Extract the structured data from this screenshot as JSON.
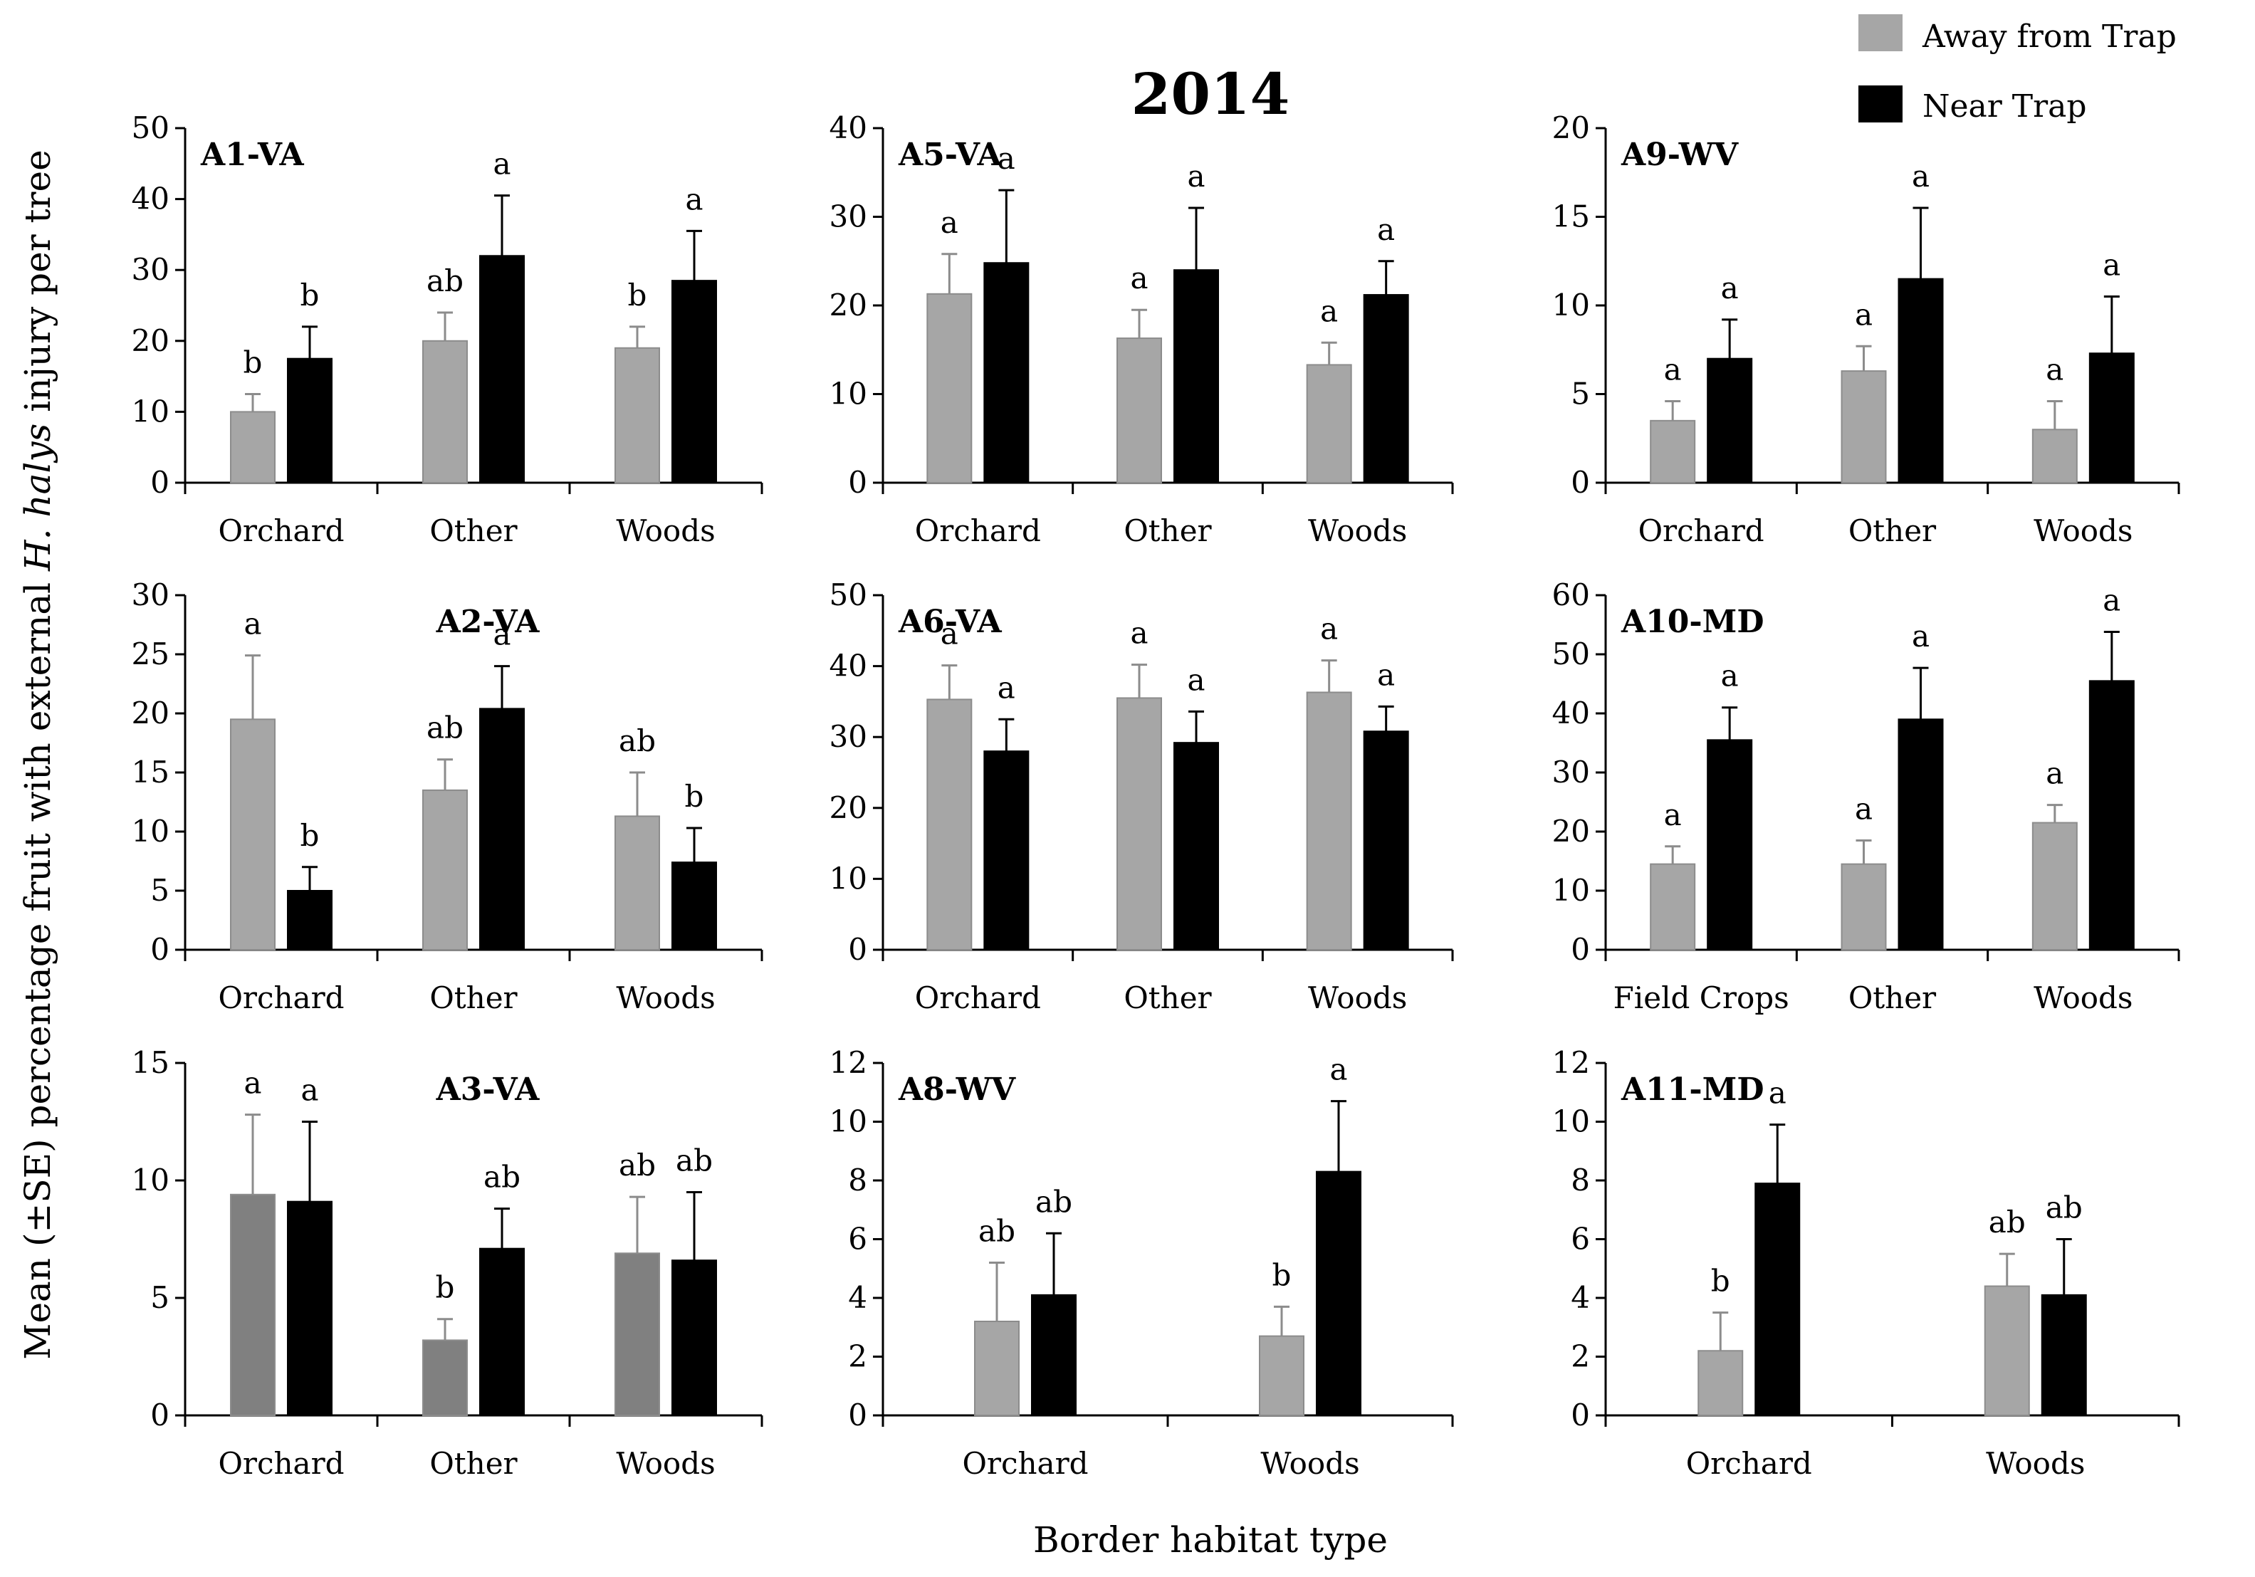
{
  "title": "2014",
  "ylabel_prefix": "Mean (±SE) percentage fruit with external ",
  "ylabel_italic": "H. halys",
  "ylabel_suffix": " injury per tree",
  "xlabel": "Border habitat type",
  "legend": [
    {
      "label": "Away from Trap",
      "color": "#a6a6a6"
    },
    {
      "label": "Near Trap",
      "color": "#000000"
    }
  ],
  "colors": {
    "away": "#a6a6a6",
    "away_dark": "#808080",
    "near": "#000000"
  },
  "chart_data": [
    {
      "type": "bar",
      "title": "A1-VA",
      "ylim": [
        0,
        50
      ],
      "yticks": [
        0,
        10,
        20,
        30,
        40,
        50
      ],
      "title_align": "left",
      "categories": [
        "Orchard",
        "Other",
        "Woods"
      ],
      "series": [
        {
          "name": "Away from Trap",
          "values": [
            10,
            20,
            19
          ],
          "errors": [
            2.5,
            4,
            3
          ],
          "letters": [
            "b",
            "ab",
            "b"
          ]
        },
        {
          "name": "Near Trap",
          "values": [
            17.5,
            32,
            28.5
          ],
          "errors": [
            4.5,
            8.5,
            7
          ],
          "letters": [
            "b",
            "a",
            "a"
          ]
        }
      ]
    },
    {
      "type": "bar",
      "title": "A5-VA",
      "ylim": [
        0,
        40
      ],
      "yticks": [
        0,
        10,
        20,
        30,
        40
      ],
      "title_align": "left",
      "categories": [
        "Orchard",
        "Other",
        "Woods"
      ],
      "series": [
        {
          "name": "Away from Trap",
          "values": [
            21.3,
            16.3,
            13.3
          ],
          "errors": [
            4.5,
            3.2,
            2.5
          ],
          "letters": [
            "a",
            "a",
            "a"
          ]
        },
        {
          "name": "Near Trap",
          "values": [
            24.8,
            24,
            21.2
          ],
          "errors": [
            8.2,
            7,
            3.8
          ],
          "letters": [
            "a",
            "a",
            "a"
          ]
        }
      ]
    },
    {
      "type": "bar",
      "title": "A9-WV",
      "ylim": [
        0,
        20
      ],
      "yticks": [
        0,
        5,
        10,
        15,
        20
      ],
      "title_align": "left",
      "categories": [
        "Orchard",
        "Other",
        "Woods"
      ],
      "series": [
        {
          "name": "Away from Trap",
          "values": [
            3.5,
            6.3,
            3
          ],
          "errors": [
            1.1,
            1.4,
            1.6
          ],
          "letters": [
            "a",
            "a",
            "a"
          ]
        },
        {
          "name": "Near Trap",
          "values": [
            7,
            11.5,
            7.3
          ],
          "errors": [
            2.2,
            4,
            3.2
          ],
          "letters": [
            "a",
            "a",
            "a"
          ]
        }
      ]
    },
    {
      "type": "bar",
      "title": "A2-VA",
      "ylim": [
        0,
        30
      ],
      "yticks": [
        0,
        5,
        10,
        15,
        20,
        25,
        30
      ],
      "title_align": "center",
      "categories": [
        "Orchard",
        "Other",
        "Woods"
      ],
      "series": [
        {
          "name": "Away from Trap",
          "values": [
            19.5,
            13.5,
            11.3
          ],
          "errors": [
            5.4,
            2.6,
            3.7
          ],
          "letters": [
            "a",
            "ab",
            "ab"
          ]
        },
        {
          "name": "Near Trap",
          "values": [
            5,
            20.4,
            7.4
          ],
          "errors": [
            2,
            3.6,
            2.9
          ],
          "letters": [
            "b",
            "a",
            "b"
          ]
        }
      ]
    },
    {
      "type": "bar",
      "title": "A6-VA",
      "ylim": [
        0,
        50
      ],
      "yticks": [
        0,
        10,
        20,
        30,
        40,
        50
      ],
      "title_align": "left",
      "categories": [
        "Orchard",
        "Other",
        "Woods"
      ],
      "series": [
        {
          "name": "Away from Trap",
          "values": [
            35.3,
            35.5,
            36.3
          ],
          "errors": [
            4.8,
            4.7,
            4.5
          ],
          "letters": [
            "a",
            "a",
            "a"
          ]
        },
        {
          "name": "Near Trap",
          "values": [
            28,
            29.2,
            30.8
          ],
          "errors": [
            4.5,
            4.4,
            3.5
          ],
          "letters": [
            "a",
            "a",
            "a"
          ]
        }
      ]
    },
    {
      "type": "bar",
      "title": "A10-MD",
      "ylim": [
        0,
        60
      ],
      "yticks": [
        0,
        10,
        20,
        30,
        40,
        50,
        60
      ],
      "title_align": "left",
      "categories": [
        "Field Crops",
        "Other",
        "Woods"
      ],
      "series": [
        {
          "name": "Away from Trap",
          "values": [
            14.5,
            14.5,
            21.5
          ],
          "errors": [
            3,
            4,
            3
          ],
          "letters": [
            "a",
            "a",
            "a"
          ]
        },
        {
          "name": "Near Trap",
          "values": [
            35.5,
            39,
            45.5
          ],
          "errors": [
            5.5,
            8.7,
            8.3
          ],
          "letters": [
            "a",
            "a",
            "a"
          ]
        }
      ]
    },
    {
      "type": "bar",
      "title": "A3-VA",
      "ylim": [
        0,
        15
      ],
      "yticks": [
        0,
        5,
        10,
        15
      ],
      "title_align": "center",
      "dark_away": true,
      "categories": [
        "Orchard",
        "Other",
        "Woods"
      ],
      "series": [
        {
          "name": "Away from Trap",
          "values": [
            9.4,
            3.2,
            6.9
          ],
          "errors": [
            3.4,
            0.9,
            2.4
          ],
          "letters": [
            "a",
            "b",
            "ab"
          ]
        },
        {
          "name": "Near Trap",
          "values": [
            9.1,
            7.1,
            6.6
          ],
          "errors": [
            3.4,
            1.7,
            2.9
          ],
          "letters": [
            "a",
            "ab",
            "ab"
          ]
        }
      ]
    },
    {
      "type": "bar",
      "title": "A8-WV",
      "ylim": [
        0,
        12
      ],
      "yticks": [
        0,
        2,
        4,
        6,
        8,
        10,
        12
      ],
      "title_align": "left",
      "categories": [
        "Orchard",
        "Woods"
      ],
      "series": [
        {
          "name": "Away from Trap",
          "values": [
            3.2,
            2.7
          ],
          "errors": [
            2,
            1
          ],
          "letters": [
            "ab",
            "b"
          ]
        },
        {
          "name": "Near Trap",
          "values": [
            4.1,
            8.3
          ],
          "errors": [
            2.1,
            2.4
          ],
          "letters": [
            "ab",
            "a"
          ]
        }
      ]
    },
    {
      "type": "bar",
      "title": "A11-MD",
      "ylim": [
        0,
        12
      ],
      "yticks": [
        0,
        2,
        4,
        6,
        8,
        10,
        12
      ],
      "title_align": "left",
      "categories": [
        "Orchard",
        "Woods"
      ],
      "series": [
        {
          "name": "Away from Trap",
          "values": [
            2.2,
            4.4
          ],
          "errors": [
            1.3,
            1.1
          ],
          "letters": [
            "b",
            "ab"
          ]
        },
        {
          "name": "Near Trap",
          "values": [
            7.9,
            4.1
          ],
          "errors": [
            2,
            1.9
          ],
          "letters": [
            "a",
            "ab"
          ]
        }
      ]
    }
  ]
}
